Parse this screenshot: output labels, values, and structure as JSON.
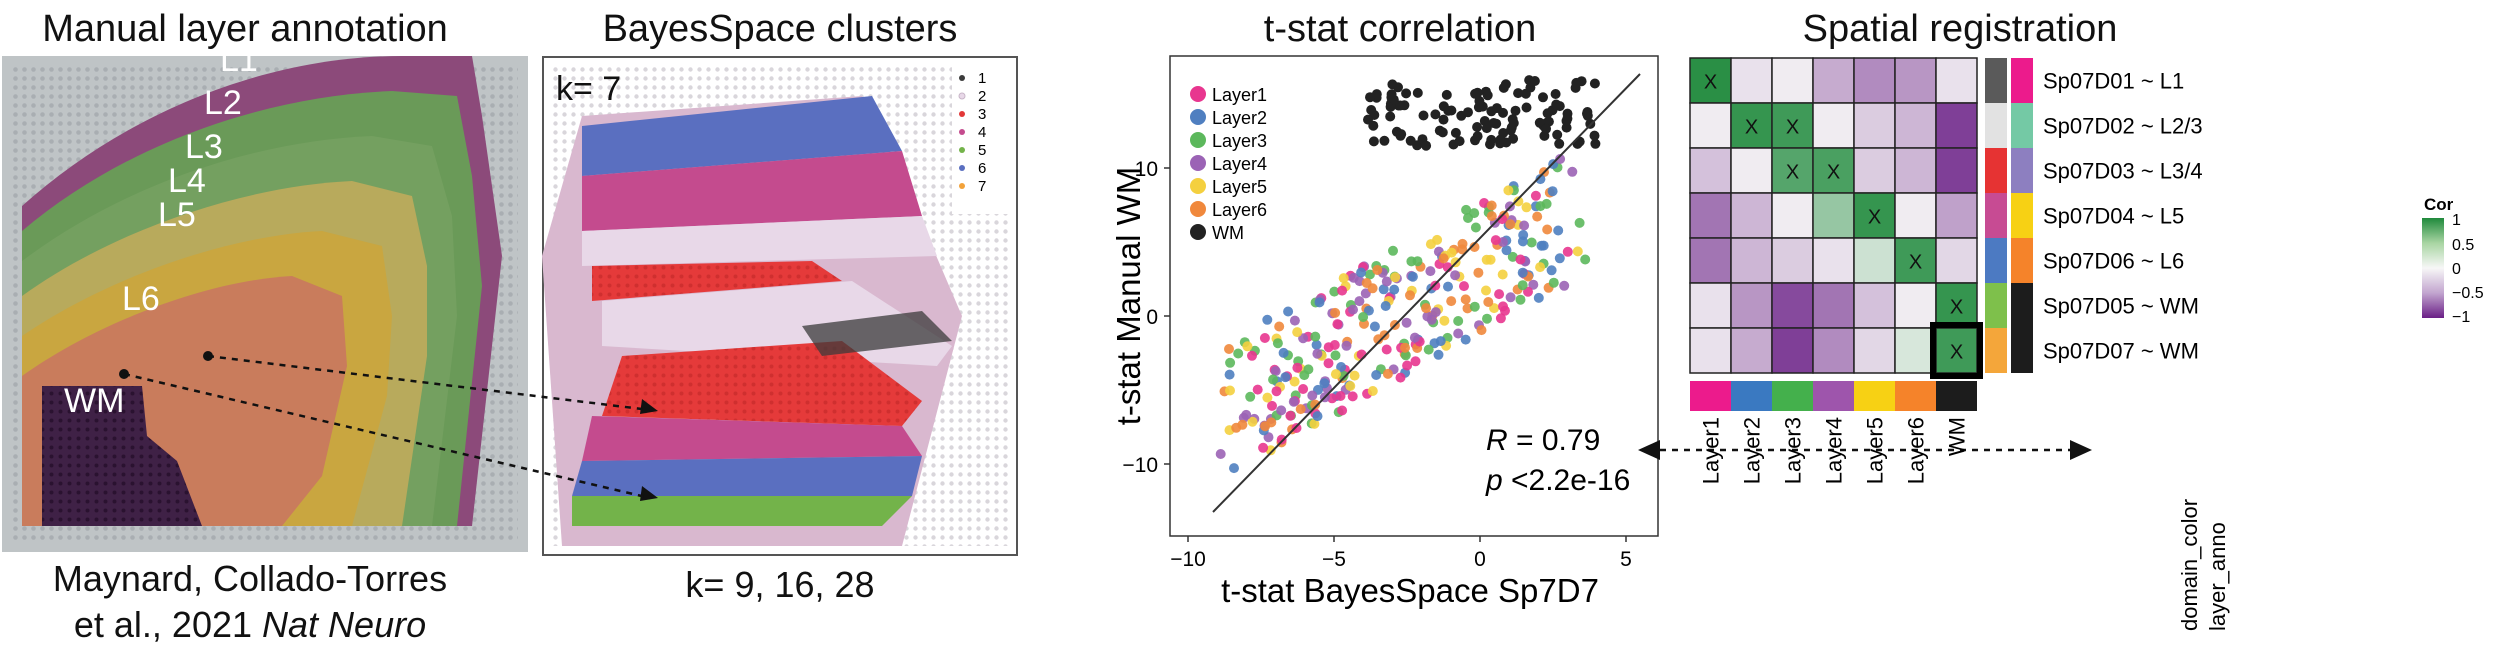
{
  "panel_manual": {
    "title": "Manual layer annotation",
    "layer_labels": [
      "L1",
      "L2",
      "L3",
      "L4",
      "L5",
      "L6",
      "WM"
    ],
    "citation_line1": "Maynard, Collado-Torres",
    "citation_line2": "et al., 2021",
    "citation_journal": "Nat Neuro"
  },
  "panel_bayes": {
    "title": "BayesSpace clusters",
    "k_label": "k= 7",
    "legend": [
      "1",
      "2",
      "3",
      "4",
      "5",
      "6",
      "7"
    ],
    "legend_colors": [
      "#3b3b3b",
      "#e8d8e8",
      "#e23838",
      "#c44b8e",
      "#73b34a",
      "#5a6fc0",
      "#f2a23a"
    ],
    "caption": "k= 9, 16, 28"
  },
  "panel_tstat": {
    "title": "t-stat correlation",
    "xlabel": "t-stat BayesSpace Sp7D7",
    "ylabel": "t-stat Manual WM",
    "xticks": [
      "−10",
      "−5",
      "0",
      "5"
    ],
    "yticks": [
      "10",
      "0",
      "−10"
    ],
    "legend": [
      "Layer1",
      "Layer2",
      "Layer3",
      "Layer4",
      "Layer5",
      "Layer6",
      "WM"
    ],
    "legend_colors": [
      "#e8368f",
      "#4f7fc0",
      "#5cb85c",
      "#9b63b5",
      "#f4d03f",
      "#f0883c",
      "#222222"
    ],
    "r_label": "R",
    "r_value": " = 0.79",
    "p_label": "p",
    "p_value": " <2.2e-16"
  },
  "panel_heatmap": {
    "title": "Spatial registration",
    "rows": [
      "Sp07D01 ~ L1",
      "Sp07D02 ~ L2/3",
      "Sp07D03 ~ L3/4",
      "Sp07D04 ~ L5",
      "Sp07D06 ~ L6",
      "Sp07D05 ~ WM",
      "Sp07D07 ~ WM"
    ],
    "cols": [
      "Layer1",
      "Layer2",
      "Layer3",
      "Layer4",
      "Layer5",
      "Layer6",
      "WM"
    ],
    "col_colors": [
      "#ec1b8c",
      "#3a79c1",
      "#44b04c",
      "#9e55ac",
      "#f7d114",
      "#f5832a",
      "#1c1c1c"
    ],
    "side_labels": [
      "domain_color",
      "layer_anno"
    ],
    "domain_colors": [
      "#5a5a5a",
      "#e2e2e2",
      "#e63333",
      "#c74b93",
      "#4c7ac2",
      "#7ec04b",
      "#f4a63a"
    ],
    "anno_colors": [
      "#ec1b8c",
      "#74c9a5",
      "#8d7fc0",
      "#f7d114",
      "#f5832a",
      "#1c1c1c",
      "#1c1c1c"
    ],
    "cell_mark": "X",
    "values": [
      [
        0.95,
        -0.1,
        -0.05,
        -0.35,
        -0.5,
        -0.45,
        -0.1
      ],
      [
        -0.05,
        0.9,
        0.85,
        -0.05,
        -0.2,
        -0.3,
        -0.85
      ],
      [
        -0.25,
        -0.05,
        0.75,
        0.8,
        -0.2,
        -0.3,
        -0.85
      ],
      [
        -0.6,
        -0.3,
        -0.05,
        0.45,
        0.9,
        -0.05,
        -0.4
      ],
      [
        -0.6,
        -0.3,
        -0.2,
        -0.1,
        0.2,
        0.85,
        -0.15
      ],
      [
        -0.1,
        -0.45,
        -0.8,
        -0.6,
        -0.25,
        -0.05,
        0.9
      ],
      [
        -0.1,
        -0.35,
        -0.85,
        -0.5,
        -0.15,
        0.15,
        0.85
      ]
    ],
    "marks": [
      [
        0,
        0
      ],
      [
        1,
        1
      ],
      [
        1,
        2
      ],
      [
        2,
        2
      ],
      [
        2,
        3
      ],
      [
        3,
        4
      ],
      [
        4,
        5
      ],
      [
        5,
        6
      ],
      [
        6,
        6
      ]
    ],
    "legend_title": "Cor",
    "legend_ticks": [
      "1",
      "0.5",
      "0",
      "−0.5",
      "−1"
    ]
  }
}
